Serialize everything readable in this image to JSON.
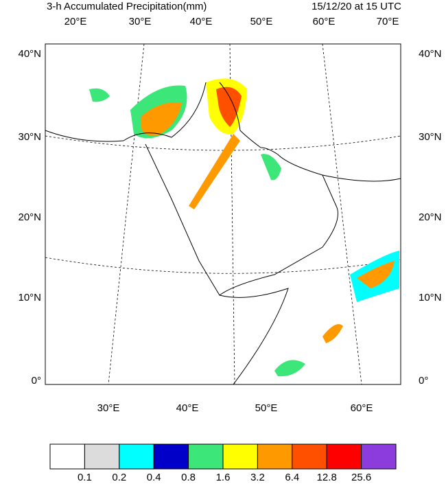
{
  "header": {
    "title": "3-h Accumulated Precipitation(mm)",
    "valid": "15/12/20 at 15 UTC"
  },
  "map": {
    "top_lon_labels": [
      "20°E",
      "30°E",
      "40°E",
      "50°E",
      "60°E",
      "70°E"
    ],
    "bottom_lon_labels": [
      "30°E",
      "40°E",
      "50°E",
      "60°E"
    ],
    "lat_labels": [
      "40°N",
      "30°N",
      "20°N",
      "10°N",
      "0°"
    ]
  },
  "legend": {
    "colors": [
      "#ffffff",
      "#dcdcdc",
      "#00ffff",
      "#0000c8",
      "#3ce678",
      "#ffff00",
      "#ff9900",
      "#ff5000",
      "#ff0000",
      "#8c3cdc"
    ],
    "labels": [
      0.1,
      0.2,
      0.4,
      0.8,
      1.6,
      3.2,
      6.4,
      12.8,
      25.6
    ]
  }
}
